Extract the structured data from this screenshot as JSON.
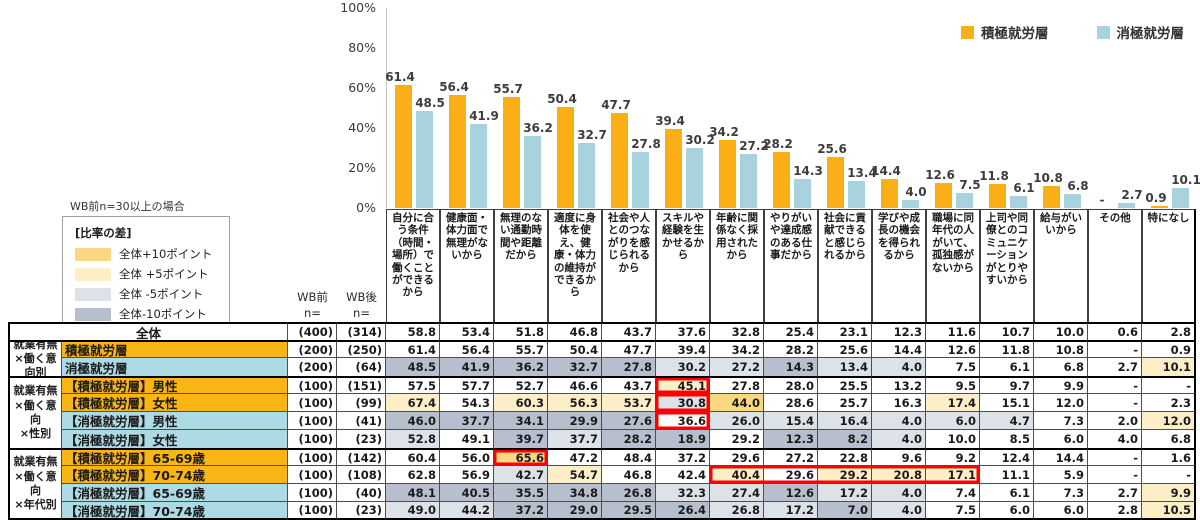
{
  "page": {
    "note": "WB前n=30以上の場合"
  },
  "diff_legend": {
    "title": "[比率の差]",
    "items": [
      {
        "label": "全体+10ポイント",
        "key": "p10"
      },
      {
        "label": "全体 +5ポイント",
        "key": "p5"
      },
      {
        "label": "全体 -5ポイント",
        "key": "m5"
      },
      {
        "label": "全体-10ポイント",
        "key": "m10"
      }
    ]
  },
  "palette": {
    "p10": "#FAD883",
    "p5": "#FCEFC8",
    "m5": "#DDE1E8",
    "m10": "#B7BFCE",
    "series_active": "#F9AF15",
    "series_passive": "#A8D3DE",
    "label_active": "#F9B514",
    "label_passive": "#AEDAE6",
    "red_box": "#FF0000"
  },
  "chart_data": {
    "type": "bar",
    "title": "",
    "xlabel": "",
    "ylabel": "",
    "ylim": [
      0,
      100
    ],
    "yticks": [
      "0%",
      "20%",
      "40%",
      "60%",
      "80%",
      "100%"
    ],
    "grid": false,
    "legend_position": "top-right",
    "categories": [
      "自分に合う条件（時間・場所）で働くことができるから",
      "健康面・体力面で無理がないから",
      "無理のない通勤時間や距離だから",
      "適度に身体を使え、健康・体力の維持ができるから",
      "社会や人とのつながりを感じられるから",
      "スキルや経験を生かせるから",
      "年齢に関係なく採用されたから",
      "やりがいや達成感のある仕事だから",
      "社会に貢献できると感じられるから",
      "学びや成長の機会を得られるから",
      "職場に同年代の人がいて、孤独感がないから",
      "上司や同僚とのコミュニケーションがとりやすいから",
      "給与がいいから",
      "その他",
      "特になし"
    ],
    "series": [
      {
        "name": "積極就労層",
        "values": [
          61.4,
          56.4,
          55.7,
          50.4,
          47.7,
          39.4,
          34.2,
          28.2,
          25.6,
          14.4,
          12.6,
          11.8,
          10.8,
          null,
          0.9
        ],
        "labels": [
          "61.4",
          "56.4",
          "55.7",
          "50.4",
          "47.7",
          "39.4",
          "34.2",
          "28.2",
          "25.6",
          "14.4",
          "12.6",
          "11.8",
          "10.8",
          "-",
          "0.9"
        ]
      },
      {
        "name": "消極就労層",
        "values": [
          48.5,
          41.9,
          36.2,
          32.7,
          27.8,
          30.2,
          27.2,
          14.3,
          13.4,
          4.0,
          7.5,
          6.1,
          6.8,
          2.7,
          10.1
        ],
        "labels": [
          "48.5",
          "41.9",
          "36.2",
          "32.7",
          "27.8",
          "30.2",
          "27.2",
          "14.3",
          "13.4",
          "4.0",
          "7.5",
          "6.1",
          "6.8",
          "2.7",
          "10.1"
        ]
      }
    ]
  },
  "table": {
    "n_col_headers": [
      "WB前\nn=",
      "WB後\nn="
    ],
    "groups": [
      {
        "group_label": "",
        "rows": [
          {
            "label": "全体",
            "style": "total",
            "n1": "(400)",
            "n2": "(314)",
            "values": [
              "58.8",
              "53.4",
              "51.8",
              "46.8",
              "43.7",
              "37.6",
              "32.8",
              "25.4",
              "23.1",
              "12.3",
              "11.6",
              "10.7",
              "10.0",
              "0.6",
              "2.8"
            ]
          }
        ]
      },
      {
        "group_label": "就業有無\n×働く意向別",
        "rows": [
          {
            "label": "積極就労層",
            "style": "active",
            "n1": "(200)",
            "n2": "(250)",
            "values": [
              "61.4",
              "56.4",
              "55.7",
              "50.4",
              "47.7",
              "39.4",
              "34.2",
              "28.2",
              "25.6",
              "14.4",
              "12.6",
              "11.8",
              "10.8",
              "-",
              "0.9"
            ]
          },
          {
            "label": "消極就労層",
            "style": "passive",
            "n1": "(200)",
            "n2": "(64)",
            "values": [
              "48.5",
              "41.9",
              "36.2",
              "32.7",
              "27.8",
              "30.2",
              "27.2",
              "14.3",
              "13.4",
              "4.0",
              "7.5",
              "6.1",
              "6.8",
              "2.7",
              "10.1"
            ]
          }
        ]
      },
      {
        "group_label": "就業有無\n×働く意向\n×性別",
        "rows": [
          {
            "label": "【積極就労層】男性",
            "style": "active",
            "n1": "(100)",
            "n2": "(151)",
            "values": [
              "57.5",
              "57.7",
              "52.7",
              "46.6",
              "43.7",
              "45.1",
              "27.8",
              "28.0",
              "25.5",
              "13.2",
              "9.5",
              "9.7",
              "9.9",
              "-",
              "-"
            ]
          },
          {
            "label": "【積極就労層】女性",
            "style": "active",
            "n1": "(100)",
            "n2": "(99)",
            "values": [
              "67.4",
              "54.3",
              "60.3",
              "56.3",
              "53.7",
              "30.8",
              "44.0",
              "28.6",
              "25.7",
              "16.3",
              "17.4",
              "15.1",
              "12.0",
              "-",
              "2.3"
            ]
          },
          {
            "label": "【消極就労層】男性",
            "style": "passive",
            "n1": "(100)",
            "n2": "(41)",
            "values": [
              "46.0",
              "37.7",
              "34.1",
              "29.9",
              "27.6",
              "36.6",
              "26.0",
              "15.4",
              "16.4",
              "4.0",
              "6.0",
              "4.7",
              "7.3",
              "2.0",
              "12.0"
            ]
          },
          {
            "label": "【消極就労層】女性",
            "style": "passive",
            "n1": "(100)",
            "n2": "(23)",
            "values": [
              "52.8",
              "49.1",
              "39.7",
              "37.7",
              "28.2",
              "18.9",
              "29.2",
              "12.3",
              "8.2",
              "4.0",
              "10.0",
              "8.5",
              "6.0",
              "4.0",
              "6.8"
            ]
          }
        ]
      },
      {
        "group_label": "就業有無\n×働く意向\n×年代別",
        "rows": [
          {
            "label": "【積極就労層】65-69歳",
            "style": "active",
            "n1": "(100)",
            "n2": "(142)",
            "values": [
              "60.4",
              "56.0",
              "65.6",
              "47.2",
              "48.4",
              "37.2",
              "29.6",
              "27.2",
              "22.8",
              "9.6",
              "9.2",
              "12.4",
              "14.4",
              "-",
              "1.6"
            ]
          },
          {
            "label": "【積極就労層】70-74歳",
            "style": "active",
            "n1": "(100)",
            "n2": "(108)",
            "values": [
              "62.8",
              "56.9",
              "42.7",
              "54.7",
              "46.8",
              "42.4",
              "40.4",
              "29.6",
              "29.2",
              "20.8",
              "17.1",
              "11.1",
              "5.9",
              "-",
              "-"
            ]
          },
          {
            "label": "【消極就労層】65-69歳",
            "style": "passive",
            "n1": "(100)",
            "n2": "(40)",
            "values": [
              "48.1",
              "40.5",
              "35.5",
              "34.8",
              "26.8",
              "32.3",
              "27.4",
              "12.6",
              "17.2",
              "4.0",
              "7.4",
              "6.1",
              "7.3",
              "2.7",
              "9.9"
            ]
          },
          {
            "label": "【消極就労層】70-74歳",
            "style": "passive",
            "n1": "(100)",
            "n2": "(23)",
            "values": [
              "49.0",
              "44.2",
              "37.2",
              "29.0",
              "29.5",
              "26.4",
              "26.8",
              "17.2",
              "7.0",
              "4.0",
              "7.5",
              "6.0",
              "6.0",
              "2.8",
              "10.5"
            ]
          }
        ]
      }
    ],
    "red_boxes": [
      {
        "row": 3,
        "cols": [
          5,
          5
        ]
      },
      {
        "row": 4,
        "cols": [
          5,
          5
        ]
      },
      {
        "row": 5,
        "cols": [
          5,
          5
        ]
      },
      {
        "row": 7,
        "cols": [
          2,
          2
        ]
      },
      {
        "row": 8,
        "cols": [
          6,
          10
        ]
      }
    ]
  }
}
